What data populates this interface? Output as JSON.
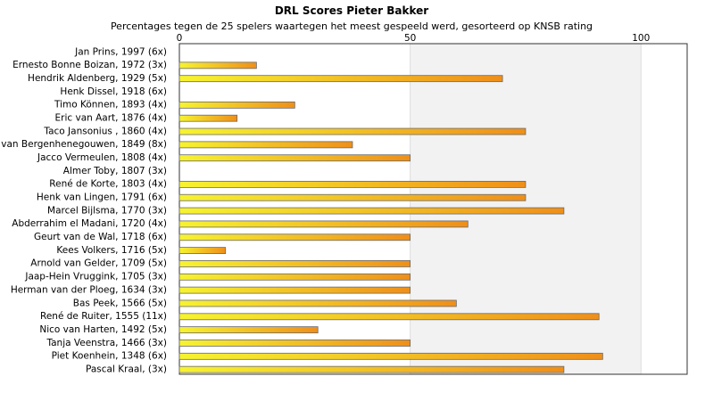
{
  "chart_data": {
    "type": "bar",
    "orientation": "horizontal",
    "title": "DRL Scores Pieter Bakker",
    "subtitle": "Percentages tegen de 25 spelers waartegen het meest gespeeld werd, gesorteerd op KNSB rating",
    "xlim": [
      0,
      110
    ],
    "xticks": [
      "0",
      "50",
      "100"
    ],
    "categories": [
      "Jan Prins, 1997 (6x)",
      "Ernesto Bonne Boizan, 1972 (3x)",
      "Hendrik Aldenberg, 1929 (5x)",
      "Henk Dissel, 1918 (6x)",
      "Timo Können, 1893 (4x)",
      "Eric van Aart, 1876 (4x)",
      "Taco Jansonius , 1860 (4x)",
      "van Bergenhenegouwen, 1849 (8x)",
      "Jacco Vermeulen, 1808 (4x)",
      "Almer Toby, 1807 (3x)",
      "René de Korte, 1803 (4x)",
      "Henk van Lingen, 1791 (6x)",
      "Marcel Bijlsma, 1770 (3x)",
      "Abderrahim el Madani, 1720 (4x)",
      "Geurt van de Wal, 1718 (6x)",
      "Kees Volkers, 1716 (5x)",
      "Arnold van Gelder, 1709 (5x)",
      "Jaap-Hein Vruggink, 1705 (3x)",
      "Herman van der Ploeg, 1634 (3x)",
      "Bas Peek, 1566 (5x)",
      "René de Ruiter, 1555 (11x)",
      "Nico van Harten, 1492 (5x)",
      "Tanja Veenstra, 1466 (3x)",
      "Piet Koenhein, 1348 (6x)",
      "Pascal Kraal,  (3x)"
    ],
    "values": [
      0,
      16.7,
      70,
      0,
      25,
      12.5,
      75,
      37.5,
      50,
      0,
      75,
      75,
      83.3,
      62.5,
      50,
      10,
      50,
      50,
      50,
      60,
      90.9,
      30,
      50,
      91.7,
      83.3
    ],
    "colors": {
      "bar_start": "#f6f330",
      "bar_end": "#ef8f1a",
      "bar_border": "#6a6a6a",
      "axis": "#333333",
      "band": "#f2f2f2",
      "grid": "#dddddd"
    }
  }
}
